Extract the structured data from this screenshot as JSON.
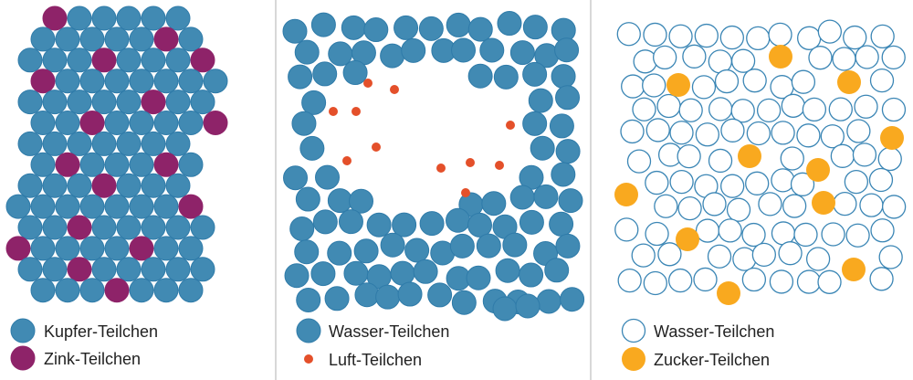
{
  "colors": {
    "copper": "#418AB3",
    "copper_stroke": "#2F7BA9",
    "zinc": "#8E2369",
    "water": "#418AB3",
    "air": "#E4502A",
    "water_outline": "#3B86B5",
    "sugar": "#F9A91F",
    "divider": "#CCCCCC"
  },
  "panels": [
    {
      "legend": [
        {
          "label": "Kupfer-Teilchen"
        },
        {
          "label": "Zink-Teilchen"
        }
      ]
    },
    {
      "legend": [
        {
          "label": "Wasser-Teilchen"
        },
        {
          "label": "Luft-Teilchen"
        }
      ]
    },
    {
      "legend": [
        {
          "label": "Wasser-Teilchen"
        },
        {
          "label": "Zucker-Teilchen"
        }
      ]
    }
  ]
}
